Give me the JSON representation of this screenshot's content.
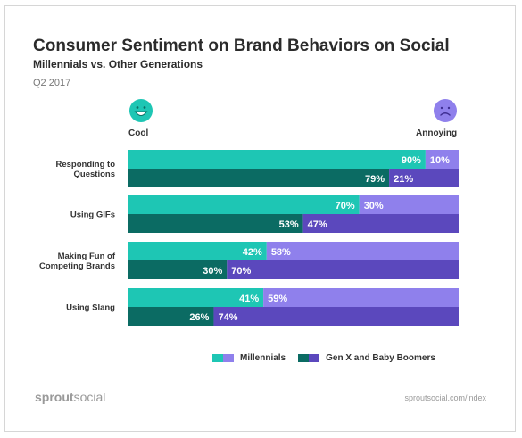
{
  "header": {
    "title": "Consumer Sentiment on Brand Behaviors on Social",
    "subtitle": "Millennials vs. Other Generations",
    "period": "Q2 2017"
  },
  "faces": {
    "cool_label": "Cool",
    "annoying_label": "Annoying",
    "cool_icon": "happy-face-icon",
    "annoying_icon": "sad-face-icon"
  },
  "colors": {
    "millennials_cool": "#1ec6b4",
    "millennials_annoying": "#8f80ec",
    "older_cool": "#0b6b63",
    "older_annoying": "#5b48bd"
  },
  "legend": {
    "millennials": "Millennials",
    "older": "Gen X and Baby Boomers"
  },
  "footer": {
    "brand_bold": "sprout",
    "brand_rest": "social",
    "url": "sproutsocial.com/index"
  },
  "chart_data": {
    "type": "bar",
    "orientation": "horizontal",
    "stacked": true,
    "categories": [
      "Responding to Questions",
      "Using GIFs",
      "Making Fun of Competing Brands",
      "Using Slang"
    ],
    "category_label_lines": [
      [
        "Responding to",
        "Questions"
      ],
      [
        "Using GIFs"
      ],
      [
        "Making Fun of",
        "Competing Brands"
      ],
      [
        "Using Slang"
      ]
    ],
    "series": [
      {
        "name": "Millennials",
        "cool": [
          90,
          70,
          42,
          41
        ],
        "annoying": [
          10,
          30,
          58,
          59
        ]
      },
      {
        "name": "Gen X and Baby Boomers",
        "cool": [
          79,
          53,
          30,
          26
        ],
        "annoying": [
          21,
          47,
          70,
          74
        ]
      }
    ],
    "xlim": [
      0,
      100
    ],
    "value_suffix": "%"
  }
}
